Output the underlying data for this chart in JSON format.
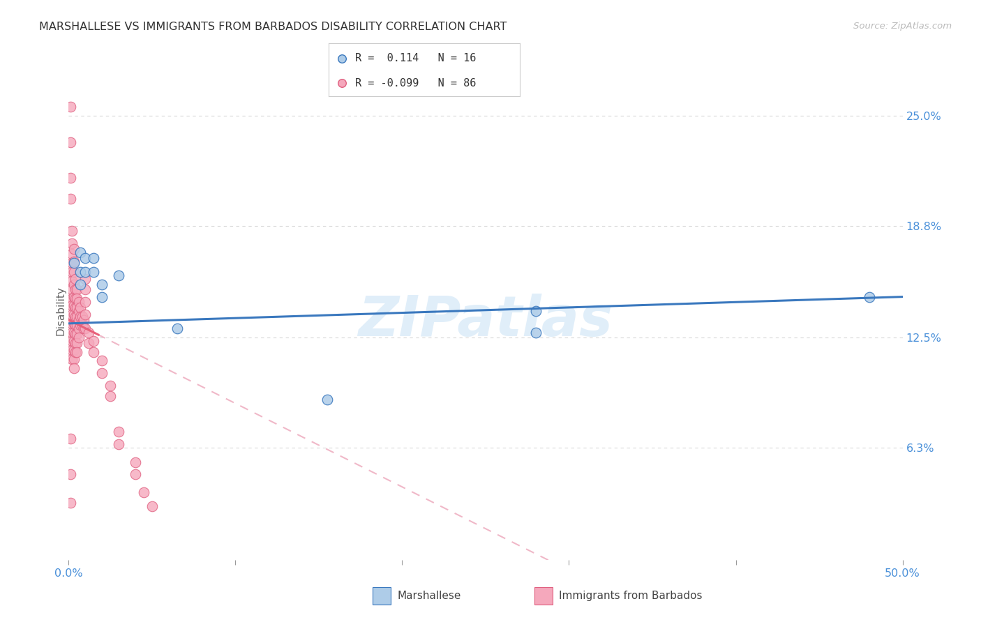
{
  "title": "MARSHALLESE VS IMMIGRANTS FROM BARBADOS DISABILITY CORRELATION CHART",
  "source": "Source: ZipAtlas.com",
  "ylabel": "Disability",
  "yticks": [
    0.063,
    0.125,
    0.188,
    0.25
  ],
  "ytick_labels": [
    "6.3%",
    "12.5%",
    "18.8%",
    "25.0%"
  ],
  "xmin": 0.0,
  "xmax": 0.5,
  "ymin": 0.0,
  "ymax": 0.28,
  "blue_color": "#aecce8",
  "pink_color": "#f5a8bc",
  "trend_blue_color": "#3a78be",
  "trend_pink_solid_color": "#e8607a",
  "trend_pink_dash_color": "#f0b8c8",
  "blue_scatter": [
    [
      0.003,
      0.167
    ],
    [
      0.007,
      0.173
    ],
    [
      0.007,
      0.162
    ],
    [
      0.007,
      0.155
    ],
    [
      0.01,
      0.17
    ],
    [
      0.01,
      0.162
    ],
    [
      0.015,
      0.17
    ],
    [
      0.015,
      0.162
    ],
    [
      0.02,
      0.155
    ],
    [
      0.02,
      0.148
    ],
    [
      0.03,
      0.16
    ],
    [
      0.065,
      0.13
    ],
    [
      0.155,
      0.09
    ],
    [
      0.28,
      0.14
    ],
    [
      0.28,
      0.128
    ],
    [
      0.48,
      0.148
    ]
  ],
  "pink_scatter": [
    [
      0.001,
      0.255
    ],
    [
      0.001,
      0.235
    ],
    [
      0.001,
      0.215
    ],
    [
      0.001,
      0.203
    ],
    [
      0.002,
      0.185
    ],
    [
      0.002,
      0.178
    ],
    [
      0.002,
      0.172
    ],
    [
      0.002,
      0.167
    ],
    [
      0.002,
      0.162
    ],
    [
      0.002,
      0.157
    ],
    [
      0.002,
      0.152
    ],
    [
      0.002,
      0.147
    ],
    [
      0.002,
      0.143
    ],
    [
      0.002,
      0.138
    ],
    [
      0.002,
      0.133
    ],
    [
      0.002,
      0.128
    ],
    [
      0.002,
      0.123
    ],
    [
      0.002,
      0.118
    ],
    [
      0.002,
      0.113
    ],
    [
      0.003,
      0.175
    ],
    [
      0.003,
      0.168
    ],
    [
      0.003,
      0.162
    ],
    [
      0.003,
      0.155
    ],
    [
      0.003,
      0.148
    ],
    [
      0.003,
      0.143
    ],
    [
      0.003,
      0.138
    ],
    [
      0.003,
      0.133
    ],
    [
      0.003,
      0.128
    ],
    [
      0.003,
      0.123
    ],
    [
      0.003,
      0.118
    ],
    [
      0.003,
      0.113
    ],
    [
      0.003,
      0.108
    ],
    [
      0.004,
      0.158
    ],
    [
      0.004,
      0.152
    ],
    [
      0.004,
      0.147
    ],
    [
      0.004,
      0.142
    ],
    [
      0.004,
      0.137
    ],
    [
      0.004,
      0.132
    ],
    [
      0.004,
      0.127
    ],
    [
      0.004,
      0.122
    ],
    [
      0.004,
      0.117
    ],
    [
      0.005,
      0.152
    ],
    [
      0.005,
      0.147
    ],
    [
      0.005,
      0.142
    ],
    [
      0.005,
      0.137
    ],
    [
      0.005,
      0.132
    ],
    [
      0.005,
      0.127
    ],
    [
      0.005,
      0.122
    ],
    [
      0.005,
      0.117
    ],
    [
      0.006,
      0.145
    ],
    [
      0.006,
      0.14
    ],
    [
      0.006,
      0.135
    ],
    [
      0.006,
      0.13
    ],
    [
      0.006,
      0.125
    ],
    [
      0.007,
      0.142
    ],
    [
      0.007,
      0.137
    ],
    [
      0.007,
      0.132
    ],
    [
      0.008,
      0.137
    ],
    [
      0.008,
      0.132
    ],
    [
      0.009,
      0.135
    ],
    [
      0.009,
      0.13
    ],
    [
      0.01,
      0.158
    ],
    [
      0.01,
      0.152
    ],
    [
      0.01,
      0.145
    ],
    [
      0.01,
      0.138
    ],
    [
      0.01,
      0.13
    ],
    [
      0.012,
      0.128
    ],
    [
      0.012,
      0.122
    ],
    [
      0.015,
      0.123
    ],
    [
      0.015,
      0.117
    ],
    [
      0.02,
      0.112
    ],
    [
      0.02,
      0.105
    ],
    [
      0.025,
      0.098
    ],
    [
      0.025,
      0.092
    ],
    [
      0.03,
      0.072
    ],
    [
      0.03,
      0.065
    ],
    [
      0.04,
      0.055
    ],
    [
      0.04,
      0.048
    ],
    [
      0.045,
      0.038
    ],
    [
      0.05,
      0.03
    ],
    [
      0.001,
      0.068
    ],
    [
      0.001,
      0.048
    ],
    [
      0.001,
      0.032
    ]
  ],
  "watermark": "ZIPatlas",
  "background_color": "#ffffff",
  "grid_color": "#d8d8d8"
}
